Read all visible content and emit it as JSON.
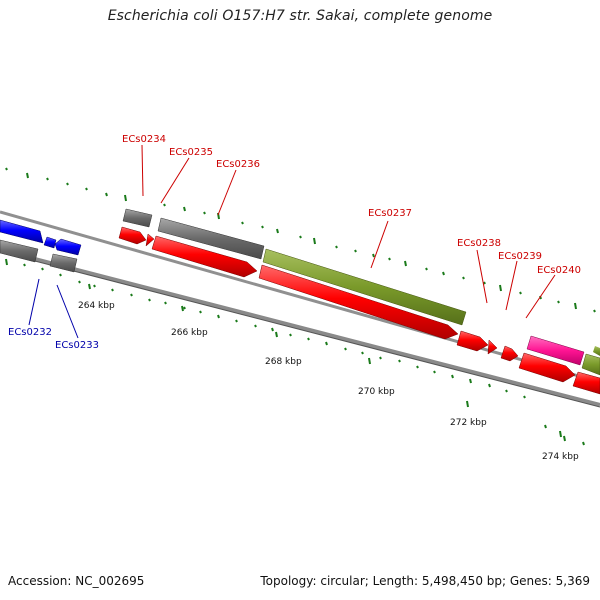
{
  "title": "Escherichia coli O157:H7 str. Sakai, complete genome",
  "accession": "Accession: NC_002695",
  "summary": "Topology: circular; Length: 5,498,450 bp; Genes: 5,369",
  "scale_labels": [
    "264 kbp",
    "266 kbp",
    "268 kbp",
    "270 kbp",
    "272 kbp",
    "274 kbp"
  ],
  "genes_forward": [
    "ECs0234",
    "ECs0235",
    "ECs0236",
    "ECs0237",
    "ECs0238",
    "ECs0239",
    "ECs0240"
  ],
  "genes_reverse": [
    "ECs0232",
    "ECs0233"
  ],
  "colors": {
    "cds_forward": "#ff0000",
    "cds_reverse": "#0000ff",
    "gene": "#6b6b6b",
    "olive_feature": "#7a9a2a",
    "pink_feature": "#ff1493",
    "gc_ticks": "#1a7a1a",
    "label_forward": "#cc0000",
    "label_reverse": "#0000aa",
    "backbone": "#888888"
  }
}
